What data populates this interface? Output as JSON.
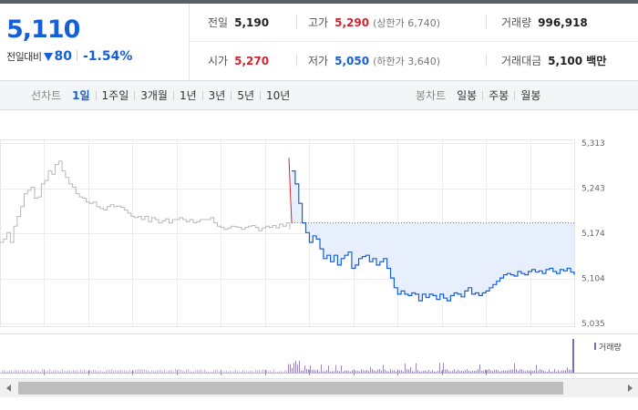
{
  "summary": {
    "current_price": "5,110",
    "change_label": "전일대비",
    "change_amount": "80",
    "change_percent": "-1.54%",
    "change_direction": "down",
    "stats": [
      {
        "key": "prev_close",
        "label": "전일",
        "value": "5,190",
        "color": "normal"
      },
      {
        "key": "high",
        "label": "고가",
        "value": "5,290",
        "color": "up",
        "sub": "(상한가 6,740)"
      },
      {
        "key": "volume",
        "label": "거래량",
        "value": "996,918",
        "color": "normal"
      },
      {
        "key": "open",
        "label": "시가",
        "value": "5,270",
        "color": "up"
      },
      {
        "key": "low",
        "label": "저가",
        "value": "5,050",
        "color": "down",
        "sub": "(하한가 3,640)"
      },
      {
        "key": "trade_value",
        "label": "거래대금",
        "value": "5,100 백만",
        "color": "normal"
      }
    ]
  },
  "tabs": {
    "line_label": "선차트",
    "line_tabs": [
      "1일",
      "1주일",
      "3개월",
      "1년",
      "3년",
      "5년",
      "10년"
    ],
    "line_active": "1일",
    "candle_label": "봉차트",
    "candle_tabs": [
      "일봉",
      "주봉",
      "월봉"
    ]
  },
  "colors": {
    "up": "#d5222f",
    "down": "#1560d8",
    "prev_day_line": "#b8b8b8",
    "area_fill": "#e6effb",
    "volume_bar": "#7f6bb0"
  },
  "chart_data": {
    "type": "line",
    "y_ticks": [
      "5,313",
      "5,243",
      "5,174",
      "5,104",
      "5,035"
    ],
    "ylim": [
      5035,
      5313
    ],
    "reference_price": 5190,
    "series": [
      {
        "values": [
          5160,
          5165,
          5175,
          5160,
          5185,
          5200,
          5215,
          5235,
          5240,
          5245,
          5228,
          5230,
          5250,
          5255,
          5270,
          5265,
          5280,
          5285,
          5270,
          5260,
          5250,
          5245,
          5235,
          5230,
          5228,
          5222,
          5220,
          5222,
          5215,
          5212,
          5210,
          5215,
          5218,
          5215,
          5216,
          5214,
          5210,
          5205,
          5200,
          5198,
          5200,
          5195,
          5200,
          5192,
          5198,
          5195,
          5190,
          5193,
          5196,
          5190,
          5195,
          5195,
          5198,
          5195,
          5192,
          5195,
          5190,
          5192,
          5195,
          5195,
          5195,
          5198,
          5190,
          5185,
          5183,
          5180,
          5182,
          5185,
          5184,
          5183,
          5180,
          5183,
          5185,
          5186,
          5183,
          5178,
          5182,
          5185,
          5183,
          5186,
          5182,
          5188,
          5185,
          5190,
          5180
        ]
      },
      {
        "values": [
          5270,
          5250,
          5220,
          5190,
          5175,
          5160,
          5170,
          5165,
          5150,
          5135,
          5140,
          5130,
          5140,
          5125,
          5135,
          5140,
          5145,
          5120,
          5125,
          5135,
          5138,
          5140,
          5130,
          5135,
          5125,
          5130,
          5135,
          5120,
          5105,
          5090,
          5080,
          5085,
          5080,
          5078,
          5082,
          5080,
          5070,
          5080,
          5075,
          5080,
          5078,
          5072,
          5080,
          5074,
          5070,
          5078,
          5082,
          5080,
          5076,
          5085,
          5090,
          5080,
          5082,
          5078,
          5082,
          5085,
          5090,
          5095,
          5100,
          5105,
          5110,
          5112,
          5110,
          5108,
          5115,
          5112,
          5110,
          5115,
          5118,
          5114,
          5116,
          5112,
          5118,
          5120,
          5115,
          5112,
          5118,
          5116,
          5120,
          5114,
          5110
        ]
      }
    ],
    "volume_legend": "거래량"
  }
}
